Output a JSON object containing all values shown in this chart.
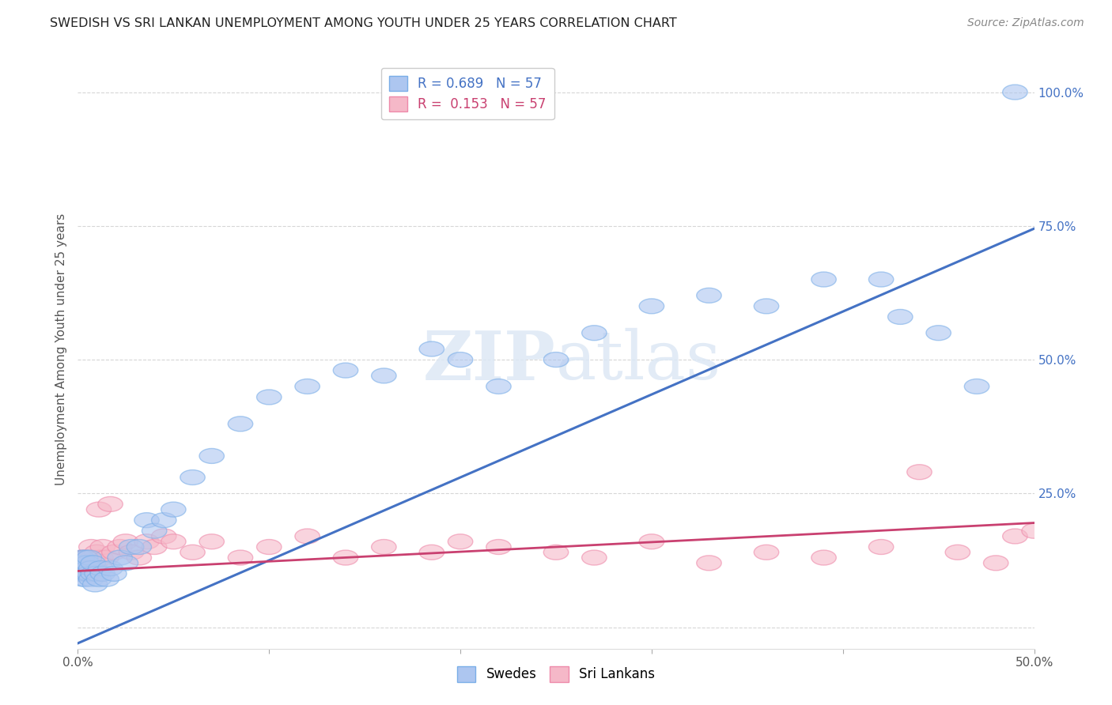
{
  "title": "SWEDISH VS SRI LANKAN UNEMPLOYMENT AMONG YOUTH UNDER 25 YEARS CORRELATION CHART",
  "source": "Source: ZipAtlas.com",
  "ylabel": "Unemployment Among Youth under 25 years",
  "xlim": [
    0.0,
    0.5
  ],
  "ylim": [
    0.0,
    1.05
  ],
  "xtick_vals": [
    0.0,
    0.1,
    0.2,
    0.3,
    0.4,
    0.5
  ],
  "xtick_labels": [
    "0.0%",
    "",
    "",
    "",
    "",
    "50.0%"
  ],
  "ytick_vals": [
    0.0,
    0.25,
    0.5,
    0.75,
    1.0
  ],
  "ytick_labels_right": [
    "",
    "25.0%",
    "50.0%",
    "75.0%",
    "100.0%"
  ],
  "swedes_color_face": "#adc6f0",
  "swedes_color_edge": "#7aaee8",
  "srilankans_color_face": "#f5b8c8",
  "srilankans_color_edge": "#ee8aaa",
  "trend_swedes_color": "#4472c4",
  "trend_srilankans_color": "#c94070",
  "R_swedes": 0.689,
  "R_srilankans": 0.153,
  "N": 57,
  "legend_swedes": "Swedes",
  "legend_srilankans": "Sri Lankans",
  "watermark_text": "ZIPAtlas",
  "swedes_x": [
    0.001,
    0.001,
    0.002,
    0.002,
    0.002,
    0.003,
    0.003,
    0.003,
    0.004,
    0.004,
    0.004,
    0.005,
    0.005,
    0.005,
    0.006,
    0.006,
    0.007,
    0.007,
    0.008,
    0.008,
    0.009,
    0.01,
    0.011,
    0.012,
    0.013,
    0.015,
    0.017,
    0.019,
    0.022,
    0.025,
    0.028,
    0.032,
    0.036,
    0.04,
    0.045,
    0.05,
    0.06,
    0.07,
    0.085,
    0.1,
    0.12,
    0.14,
    0.16,
    0.185,
    0.2,
    0.22,
    0.25,
    0.27,
    0.3,
    0.33,
    0.36,
    0.39,
    0.42,
    0.43,
    0.45,
    0.47,
    0.49
  ],
  "swedes_y": [
    0.1,
    0.12,
    0.1,
    0.13,
    0.11,
    0.09,
    0.12,
    0.11,
    0.1,
    0.13,
    0.09,
    0.11,
    0.1,
    0.12,
    0.1,
    0.13,
    0.09,
    0.11,
    0.1,
    0.12,
    0.08,
    0.1,
    0.09,
    0.11,
    0.1,
    0.09,
    0.11,
    0.1,
    0.13,
    0.12,
    0.15,
    0.15,
    0.2,
    0.18,
    0.2,
    0.22,
    0.28,
    0.32,
    0.38,
    0.43,
    0.45,
    0.48,
    0.47,
    0.52,
    0.5,
    0.45,
    0.5,
    0.55,
    0.6,
    0.62,
    0.6,
    0.65,
    0.65,
    0.58,
    0.55,
    0.45,
    1.0
  ],
  "srilankans_x": [
    0.001,
    0.001,
    0.002,
    0.002,
    0.002,
    0.003,
    0.003,
    0.003,
    0.004,
    0.004,
    0.004,
    0.005,
    0.005,
    0.005,
    0.006,
    0.006,
    0.007,
    0.007,
    0.008,
    0.009,
    0.01,
    0.011,
    0.012,
    0.013,
    0.015,
    0.017,
    0.019,
    0.022,
    0.025,
    0.028,
    0.032,
    0.036,
    0.04,
    0.045,
    0.05,
    0.06,
    0.07,
    0.085,
    0.1,
    0.12,
    0.14,
    0.16,
    0.185,
    0.2,
    0.22,
    0.25,
    0.27,
    0.3,
    0.33,
    0.36,
    0.39,
    0.42,
    0.44,
    0.46,
    0.48,
    0.49,
    0.5
  ],
  "srilankans_y": [
    0.12,
    0.11,
    0.13,
    0.1,
    0.12,
    0.11,
    0.13,
    0.1,
    0.12,
    0.11,
    0.13,
    0.1,
    0.12,
    0.11,
    0.13,
    0.1,
    0.12,
    0.15,
    0.13,
    0.12,
    0.14,
    0.22,
    0.13,
    0.15,
    0.13,
    0.23,
    0.14,
    0.15,
    0.16,
    0.14,
    0.13,
    0.16,
    0.15,
    0.17,
    0.16,
    0.14,
    0.16,
    0.13,
    0.15,
    0.17,
    0.13,
    0.15,
    0.14,
    0.16,
    0.15,
    0.14,
    0.13,
    0.16,
    0.12,
    0.14,
    0.13,
    0.15,
    0.29,
    0.14,
    0.12,
    0.17,
    0.18
  ]
}
